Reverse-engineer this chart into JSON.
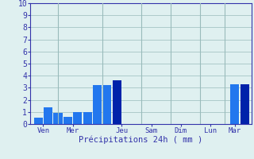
{
  "bar_values": [
    0.5,
    1.4,
    0.9,
    0.6,
    1.0,
    1.0,
    3.2,
    3.2,
    3.6,
    0.0,
    0.0,
    0.0,
    0.0,
    0.0,
    0.0,
    0.0,
    0.0,
    0.0,
    0.0,
    0.0,
    3.3,
    3.3
  ],
  "bar_colors_dark": [
    false,
    false,
    false,
    false,
    false,
    false,
    false,
    false,
    true,
    false,
    false,
    false,
    false,
    false,
    false,
    false,
    false,
    false,
    false,
    false,
    false,
    true
  ],
  "xlabel": "Précipitations 24h ( mm )",
  "ylim": [
    0,
    10
  ],
  "yticks": [
    0,
    1,
    2,
    3,
    4,
    5,
    6,
    7,
    8,
    9,
    10
  ],
  "day_labels": [
    "Ven",
    "Mer",
    "Jeu",
    "Sam",
    "Dim",
    "Lun",
    "Mar"
  ],
  "day_tick_positions": [
    0.5,
    3.5,
    8.5,
    11.5,
    14.5,
    17.5,
    20.0
  ],
  "day_separators": [
    2.0,
    6.5,
    10.5,
    13.5,
    16.5,
    19.0
  ],
  "bg_color": "#dff0f0",
  "bar_color_light": "#2277ee",
  "bar_color_dark": "#0022aa",
  "grid_color": "#99bbbb",
  "axis_color": "#3333aa",
  "text_color": "#3333aa",
  "n_bars": 22,
  "bar_width": 0.9
}
